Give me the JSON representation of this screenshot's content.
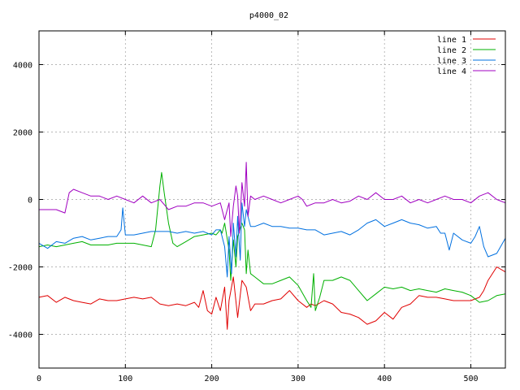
{
  "chart_data": {
    "type": "line",
    "title": "p4000_02",
    "xlabel": "",
    "ylabel": "",
    "xlim": [
      0,
      540
    ],
    "ylim": [
      -5000,
      5000
    ],
    "xticks": [
      0,
      100,
      200,
      300,
      400,
      500
    ],
    "yticks": [
      -4000,
      -2000,
      0,
      2000,
      4000
    ],
    "grid": true,
    "legend_position": "top-right",
    "series": [
      {
        "name": "line 1",
        "color": "#e00000",
        "x": [
          0,
          10,
          20,
          30,
          40,
          50,
          60,
          70,
          80,
          90,
          100,
          110,
          120,
          130,
          140,
          150,
          160,
          170,
          180,
          185,
          190,
          195,
          200,
          205,
          210,
          215,
          218,
          220,
          225,
          230,
          235,
          240,
          245,
          250,
          260,
          270,
          280,
          290,
          300,
          310,
          315,
          320,
          330,
          340,
          350,
          360,
          370,
          380,
          390,
          400,
          410,
          420,
          430,
          440,
          450,
          460,
          470,
          480,
          490,
          500,
          510,
          515,
          520,
          530,
          540
        ],
        "y": [
          -2900,
          -2850,
          -3050,
          -2900,
          -3000,
          -3050,
          -3100,
          -2950,
          -3000,
          -3000,
          -2950,
          -2900,
          -2950,
          -2900,
          -3100,
          -3150,
          -3100,
          -3150,
          -3050,
          -3200,
          -2700,
          -3300,
          -3400,
          -2900,
          -3300,
          -2600,
          -3850,
          -3000,
          -2300,
          -3500,
          -2400,
          -2600,
          -3300,
          -3100,
          -3100,
          -3000,
          -2950,
          -2700,
          -3000,
          -3200,
          -3100,
          -3150,
          -3000,
          -3100,
          -3350,
          -3400,
          -3500,
          -3700,
          -3600,
          -3350,
          -3550,
          -3200,
          -3100,
          -2850,
          -2900,
          -2900,
          -2950,
          -3000,
          -3000,
          -3000,
          -2900,
          -2700,
          -2400,
          -2000,
          -2150
        ]
      },
      {
        "name": "line 2",
        "color": "#00b000",
        "x": [
          0,
          10,
          20,
          30,
          40,
          50,
          60,
          70,
          80,
          90,
          100,
          110,
          120,
          130,
          135,
          140,
          142,
          145,
          150,
          155,
          160,
          170,
          180,
          190,
          200,
          205,
          210,
          212,
          215,
          220,
          222,
          225,
          228,
          230,
          235,
          238,
          240,
          242,
          245,
          250,
          260,
          270,
          280,
          290,
          300,
          310,
          315,
          318,
          320,
          325,
          330,
          340,
          350,
          360,
          370,
          380,
          390,
          400,
          410,
          420,
          430,
          440,
          450,
          460,
          470,
          480,
          490,
          500,
          510,
          520,
          530,
          540
        ],
        "y": [
          -1400,
          -1350,
          -1400,
          -1350,
          -1300,
          -1250,
          -1350,
          -1350,
          -1350,
          -1300,
          -1300,
          -1300,
          -1350,
          -1400,
          -900,
          400,
          800,
          200,
          -700,
          -1300,
          -1400,
          -1250,
          -1100,
          -1050,
          -1000,
          -1050,
          -900,
          -1000,
          -700,
          -1500,
          -2400,
          -1200,
          -2000,
          -1100,
          -700,
          -900,
          -2200,
          -1500,
          -2200,
          -2300,
          -2500,
          -2500,
          -2400,
          -2300,
          -2550,
          -3000,
          -3200,
          -2200,
          -3300,
          -2900,
          -2400,
          -2400,
          -2300,
          -2400,
          -2700,
          -3000,
          -2800,
          -2600,
          -2650,
          -2600,
          -2700,
          -2650,
          -2700,
          -2750,
          -2650,
          -2700,
          -2750,
          -2850,
          -3050,
          -3000,
          -2850,
          -2800
        ]
      },
      {
        "name": "line 3",
        "color": "#0070e0",
        "x": [
          0,
          10,
          20,
          30,
          40,
          50,
          60,
          70,
          80,
          90,
          95,
          97,
          100,
          110,
          120,
          130,
          140,
          150,
          160,
          170,
          180,
          190,
          200,
          205,
          210,
          215,
          218,
          220,
          223,
          225,
          228,
          230,
          233,
          235,
          238,
          240,
          245,
          250,
          260,
          270,
          280,
          290,
          300,
          310,
          320,
          330,
          340,
          350,
          360,
          370,
          380,
          390,
          400,
          410,
          420,
          430,
          440,
          450,
          460,
          465,
          470,
          475,
          480,
          490,
          500,
          505,
          510,
          515,
          520,
          530,
          540
        ],
        "y": [
          -1300,
          -1450,
          -1250,
          -1300,
          -1150,
          -1100,
          -1200,
          -1150,
          -1100,
          -1100,
          -900,
          -250,
          -1050,
          -1050,
          -1000,
          -950,
          -950,
          -950,
          -1000,
          -950,
          -1000,
          -950,
          -1050,
          -900,
          -900,
          -1400,
          -2300,
          -1100,
          -2200,
          -700,
          -1700,
          -500,
          -1800,
          -100,
          -800,
          -300,
          -800,
          -800,
          -700,
          -800,
          -800,
          -850,
          -850,
          -900,
          -900,
          -1050,
          -1000,
          -950,
          -1050,
          -900,
          -700,
          -600,
          -800,
          -700,
          -600,
          -700,
          -750,
          -850,
          -800,
          -1000,
          -1000,
          -1500,
          -1000,
          -1200,
          -1300,
          -1100,
          -800,
          -1400,
          -1700,
          -1600,
          -1150
        ]
      },
      {
        "name": "line 4",
        "color": "#a000c0",
        "x": [
          0,
          10,
          20,
          30,
          35,
          40,
          50,
          60,
          70,
          80,
          90,
          100,
          110,
          120,
          130,
          140,
          150,
          160,
          170,
          180,
          190,
          200,
          210,
          215,
          218,
          220,
          222,
          225,
          228,
          230,
          232,
          235,
          238,
          240,
          242,
          245,
          250,
          260,
          270,
          280,
          290,
          300,
          305,
          310,
          320,
          330,
          340,
          350,
          360,
          370,
          380,
          390,
          400,
          410,
          420,
          430,
          440,
          450,
          460,
          470,
          480,
          490,
          500,
          510,
          520,
          530,
          540
        ],
        "y": [
          -300,
          -300,
          -300,
          -400,
          200,
          300,
          200,
          100,
          100,
          0,
          100,
          0,
          -100,
          100,
          -100,
          0,
          -300,
          -200,
          -200,
          -100,
          -100,
          -200,
          -100,
          -600,
          -300,
          -100,
          -1100,
          -200,
          400,
          100,
          -1000,
          500,
          -200,
          1100,
          -500,
          100,
          0,
          100,
          0,
          -100,
          0,
          100,
          0,
          -200,
          -100,
          -100,
          0,
          -100,
          -50,
          100,
          0,
          200,
          0,
          0,
          100,
          -100,
          0,
          -100,
          0,
          100,
          0,
          0,
          -100,
          100,
          200,
          0,
          -100
        ]
      }
    ]
  }
}
